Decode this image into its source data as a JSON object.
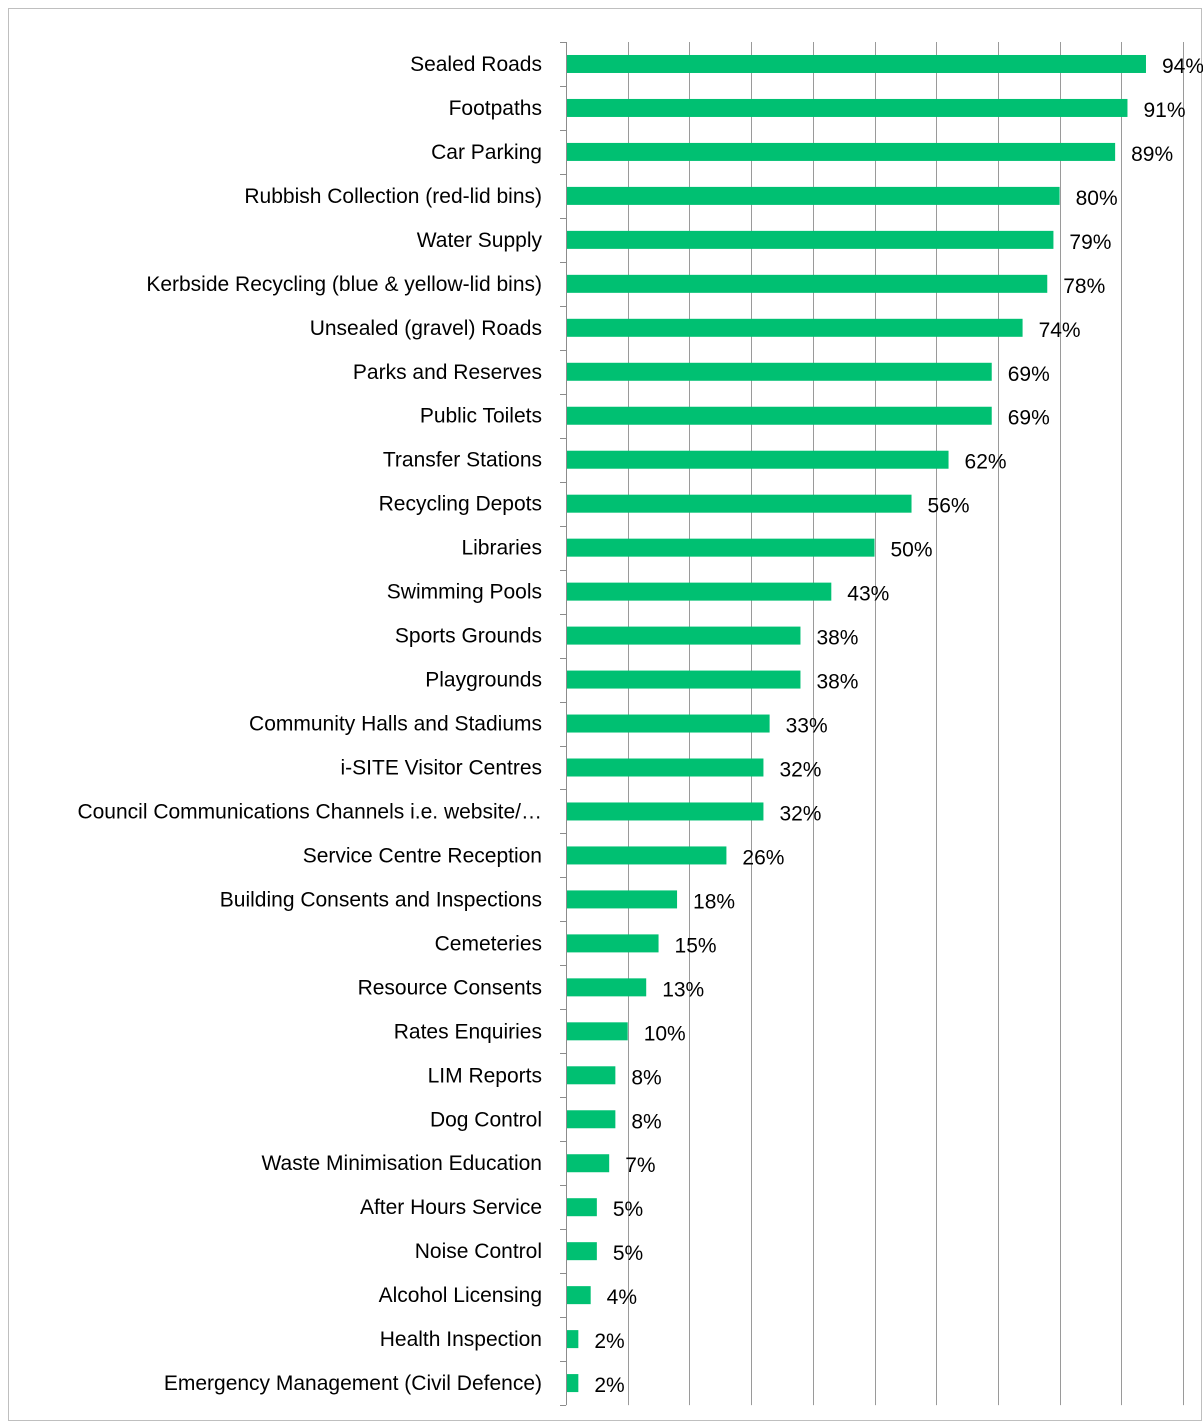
{
  "chart_data": {
    "type": "bar",
    "orientation": "horizontal",
    "categories": [
      "Sealed Roads",
      "Footpaths",
      "Car Parking",
      "Rubbish Collection (red-lid bins)",
      "Water Supply",
      "Kerbside Recycling (blue & yellow-lid bins)",
      "Unsealed (gravel) Roads",
      "Parks and Reserves",
      "Public Toilets",
      "Transfer Stations",
      "Recycling Depots",
      "Libraries",
      "Swimming Pools",
      "Sports Grounds",
      "Playgrounds",
      "Community Halls and Stadiums",
      "i-SITE Visitor Centres",
      "Council Communications Channels i.e. website/…",
      "Service Centre Reception",
      "Building Consents and Inspections",
      "Cemeteries",
      "Resource Consents",
      "Rates Enquiries",
      "LIM Reports",
      "Dog Control",
      "Waste Minimisation Education",
      "After Hours Service",
      "Noise Control",
      "Alcohol Licensing",
      "Health Inspection",
      "Emergency Management (Civil Defence)"
    ],
    "values": [
      94,
      91,
      89,
      80,
      79,
      78,
      74,
      69,
      69,
      62,
      56,
      50,
      43,
      38,
      38,
      33,
      32,
      32,
      26,
      18,
      15,
      13,
      10,
      8,
      8,
      7,
      5,
      5,
      4,
      2,
      2
    ],
    "value_labels": [
      "94%",
      "91%",
      "89%",
      "80%",
      "79%",
      "78%",
      "74%",
      "69%",
      "69%",
      "62%",
      "56%",
      "50%",
      "43%",
      "38%",
      "38%",
      "33%",
      "32%",
      "32%",
      "26%",
      "18%",
      "15%",
      "13%",
      "10%",
      "8%",
      "8%",
      "7%",
      "5%",
      "5%",
      "4%",
      "2%",
      "2%"
    ],
    "xlim": [
      0,
      100
    ],
    "grid": true,
    "bar_color": "#00c072",
    "title": "",
    "xlabel": "",
    "ylabel": ""
  }
}
